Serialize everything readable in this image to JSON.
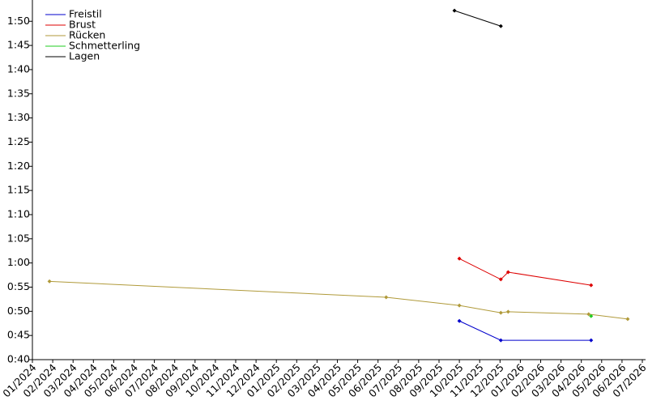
{
  "chart_data": {
    "type": "line",
    "xlim": [
      2024,
      2026.5
    ],
    "xticks": [
      {
        "value": 2024.0,
        "label": "01/2024"
      },
      {
        "value": 2024.0833,
        "label": "02/2024"
      },
      {
        "value": 2024.1667,
        "label": "03/2024"
      },
      {
        "value": 2024.25,
        "label": "04/2024"
      },
      {
        "value": 2024.3333,
        "label": "05/2024"
      },
      {
        "value": 2024.4167,
        "label": "06/2024"
      },
      {
        "value": 2024.5,
        "label": "07/2024"
      },
      {
        "value": 2024.5833,
        "label": "08/2024"
      },
      {
        "value": 2024.6667,
        "label": "09/2024"
      },
      {
        "value": 2024.75,
        "label": "10/2024"
      },
      {
        "value": 2024.8333,
        "label": "11/2024"
      },
      {
        "value": 2024.9167,
        "label": "12/2024"
      },
      {
        "value": 2025.0,
        "label": "01/2025"
      },
      {
        "value": 2025.0833,
        "label": "02/2025"
      },
      {
        "value": 2025.1667,
        "label": "03/2025"
      },
      {
        "value": 2025.25,
        "label": "04/2025"
      },
      {
        "value": 2025.3333,
        "label": "05/2025"
      },
      {
        "value": 2025.4167,
        "label": "06/2025"
      },
      {
        "value": 2025.5,
        "label": "07/2025"
      },
      {
        "value": 2025.5833,
        "label": "08/2025"
      },
      {
        "value": 2025.6667,
        "label": "09/2025"
      },
      {
        "value": 2025.75,
        "label": "10/2025"
      },
      {
        "value": 2025.8333,
        "label": "11/2025"
      },
      {
        "value": 2025.9167,
        "label": "12/2025"
      },
      {
        "value": 2026.0,
        "label": "01/2026"
      },
      {
        "value": 2026.0833,
        "label": "02/2026"
      },
      {
        "value": 2026.1667,
        "label": "03/2026"
      },
      {
        "value": 2026.25,
        "label": "04/2026"
      },
      {
        "value": 2026.3333,
        "label": "05/2026"
      },
      {
        "value": 2026.4167,
        "label": "06/2026"
      },
      {
        "value": 2026.5,
        "label": "07/2026"
      }
    ],
    "ylim": [
      40,
      114.4
    ],
    "yticks": [
      {
        "value": 40,
        "label": "0:40"
      },
      {
        "value": 45,
        "label": "0:45"
      },
      {
        "value": 50,
        "label": "0:50"
      },
      {
        "value": 55,
        "label": "0:55"
      },
      {
        "value": 60,
        "label": "1:00"
      },
      {
        "value": 65,
        "label": "1:05"
      },
      {
        "value": 70,
        "label": "1:10"
      },
      {
        "value": 75,
        "label": "1:15"
      },
      {
        "value": 80,
        "label": "1:20"
      },
      {
        "value": 85,
        "label": "1:25"
      },
      {
        "value": 90,
        "label": "1:30"
      },
      {
        "value": 95,
        "label": "1:35"
      },
      {
        "value": 100,
        "label": "1:40"
      },
      {
        "value": 105,
        "label": "1:45"
      },
      {
        "value": 110,
        "label": "1:50"
      }
    ],
    "legend": "upper left",
    "series": [
      {
        "name": "Freistil",
        "color": "#0000cc",
        "x": [
          2025.75,
          2025.92,
          2026.29
        ],
        "values": [
          48.0,
          44.0,
          44.0
        ]
      },
      {
        "name": "Brust",
        "color": "#dd0000",
        "x": [
          2025.75,
          2025.92,
          2025.95,
          2026.29
        ],
        "values": [
          60.9,
          56.6,
          58.1,
          55.4
        ]
      },
      {
        "name": "Rücken",
        "color": "#b09a3a",
        "x": [
          2024.07,
          2025.45,
          2025.75,
          2025.92,
          2025.95,
          2026.28,
          2026.44
        ],
        "values": [
          56.2,
          52.9,
          51.2,
          49.7,
          49.9,
          49.4,
          48.4
        ]
      },
      {
        "name": "Schmetterling",
        "color": "#22cc22",
        "x": [
          2026.29
        ],
        "values": [
          49.0
        ]
      },
      {
        "name": "Lagen",
        "color": "#000000",
        "x": [
          2025.73,
          2025.92
        ],
        "values": [
          112.2,
          109.0
        ]
      }
    ]
  }
}
